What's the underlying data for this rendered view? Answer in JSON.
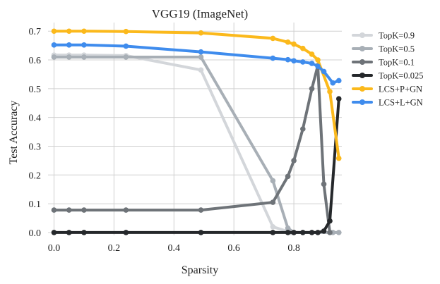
{
  "chart_data": {
    "type": "line",
    "title": "VGG19 (ImageNet)",
    "xlabel": "Sparsity",
    "ylabel": "Test Accuracy",
    "xlim": [
      -0.02,
      0.96
    ],
    "ylim": [
      -0.01,
      0.73
    ],
    "xticks": [
      0.0,
      0.2,
      0.4,
      0.6,
      0.8
    ],
    "xtick_labels": [
      "0.0",
      "0.2",
      "0.4",
      "0.6",
      "0.8"
    ],
    "yticks": [
      0.0,
      0.1,
      0.2,
      0.3,
      0.4,
      0.5,
      0.6,
      0.7
    ],
    "ytick_labels": [
      "0.0",
      "0.1",
      "0.2",
      "0.3",
      "0.4",
      "0.5",
      "0.6",
      "0.7"
    ],
    "grid": true,
    "legend_position": "right",
    "series": [
      {
        "name": "TopK=0.9",
        "color": "#d3d6da",
        "x": [
          0.0,
          0.05,
          0.1,
          0.24,
          0.49,
          0.73,
          0.79
        ],
        "y": [
          0.617,
          0.617,
          0.617,
          0.615,
          0.565,
          0.02,
          0.0
        ]
      },
      {
        "name": "TopK=0.5",
        "color": "#a8afb6",
        "x": [
          0.0,
          0.05,
          0.1,
          0.24,
          0.49,
          0.73,
          0.78,
          0.8,
          0.93,
          0.95
        ],
        "y": [
          0.61,
          0.61,
          0.61,
          0.61,
          0.61,
          0.18,
          0.015,
          0.0,
          0.0,
          0.0
        ]
      },
      {
        "name": "TopK=0.1",
        "color": "#6e7378",
        "x": [
          0.0,
          0.05,
          0.1,
          0.24,
          0.49,
          0.73,
          0.78,
          0.8,
          0.83,
          0.86,
          0.88,
          0.9,
          0.92
        ],
        "y": [
          0.078,
          0.078,
          0.078,
          0.078,
          0.078,
          0.105,
          0.195,
          0.25,
          0.36,
          0.5,
          0.58,
          0.168,
          0.0
        ]
      },
      {
        "name": "TopK=0.025",
        "color": "#25282b",
        "x": [
          0.0,
          0.05,
          0.1,
          0.24,
          0.49,
          0.73,
          0.78,
          0.8,
          0.83,
          0.86,
          0.88,
          0.9,
          0.92,
          0.95
        ],
        "y": [
          0.0,
          0.0,
          0.0,
          0.0,
          0.0,
          0.0,
          0.0,
          0.0,
          0.0,
          0.0,
          0.0,
          0.005,
          0.04,
          0.465
        ]
      },
      {
        "name": "LCS+P+GN",
        "color": "#fbb91c",
        "x": [
          0.0,
          0.05,
          0.1,
          0.24,
          0.49,
          0.73,
          0.78,
          0.8,
          0.83,
          0.86,
          0.88,
          0.92,
          0.95
        ],
        "y": [
          0.7,
          0.7,
          0.7,
          0.699,
          0.694,
          0.675,
          0.662,
          0.655,
          0.64,
          0.62,
          0.6,
          0.49,
          0.258
        ]
      },
      {
        "name": "LCS+L+GN",
        "color": "#3f8ced",
        "x": [
          0.0,
          0.05,
          0.1,
          0.24,
          0.49,
          0.73,
          0.78,
          0.8,
          0.83,
          0.86,
          0.88,
          0.9,
          0.93,
          0.95
        ],
        "y": [
          0.652,
          0.652,
          0.652,
          0.648,
          0.628,
          0.606,
          0.601,
          0.597,
          0.593,
          0.588,
          0.578,
          0.56,
          0.52,
          0.528
        ]
      }
    ]
  }
}
